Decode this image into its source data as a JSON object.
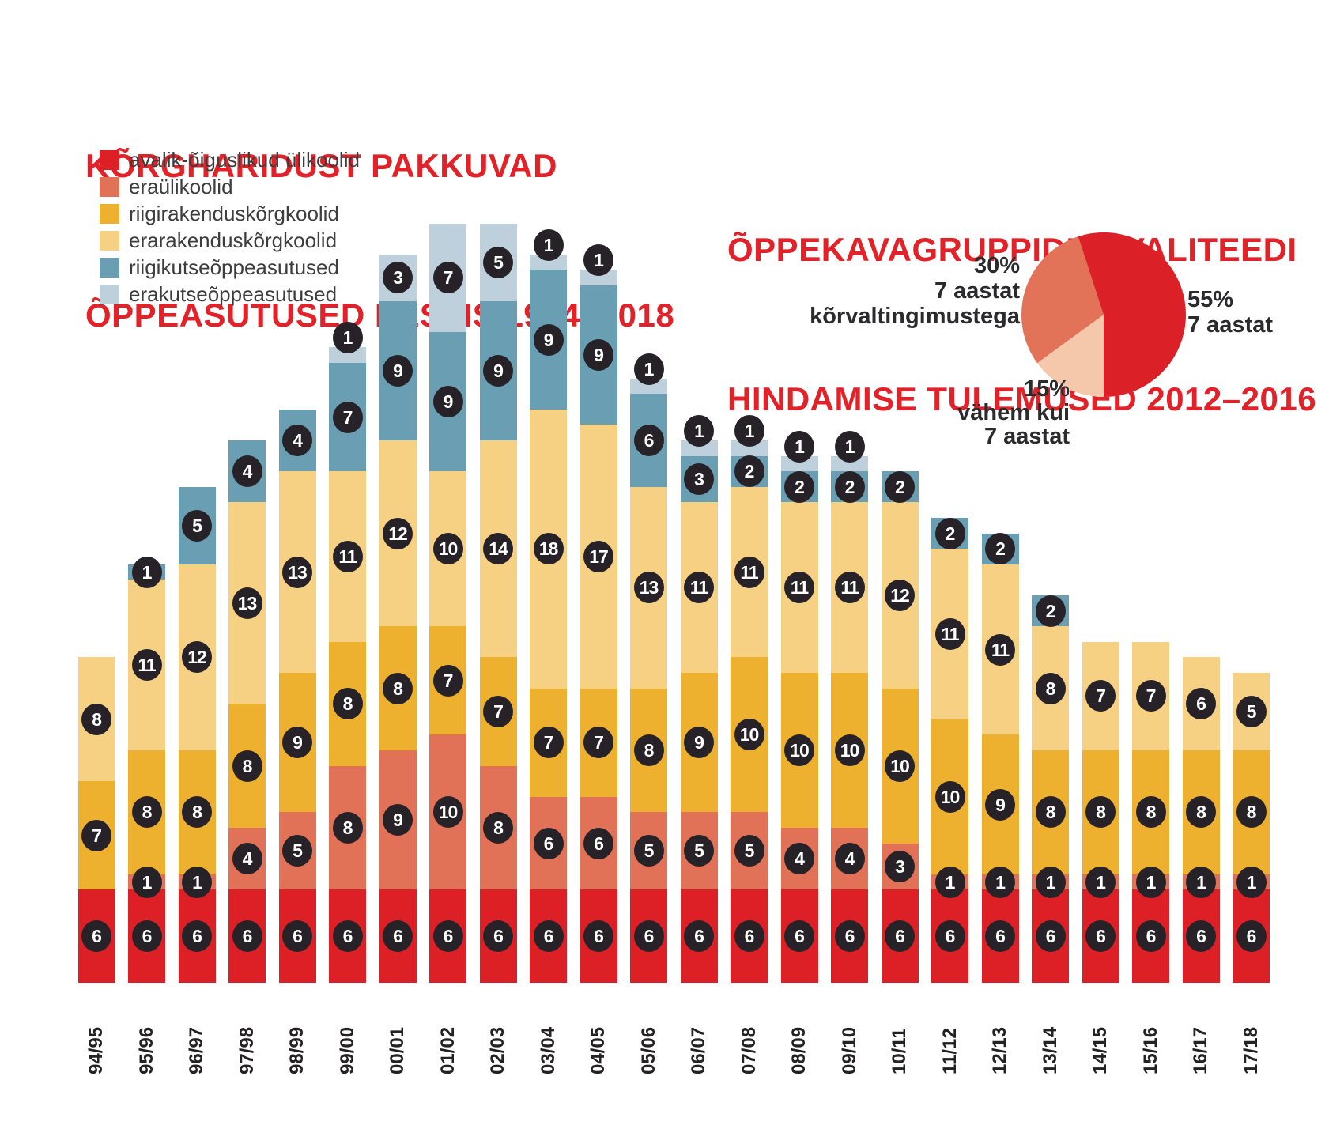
{
  "colors": {
    "title_red": "#e32128",
    "badge_bg": "#262228",
    "badge_text": "#ffffff",
    "axis_text": "#242122",
    "legend_text": "#3d3d3d"
  },
  "left_chart": {
    "title_line1": "KÕRGHARIDUST PAKKUVAD",
    "title_line2": "ÕPPEASUTUSED EESTIS 1994–2018",
    "legend": [
      {
        "label": "avalik-õiguslikud ülikoolid",
        "color": "#dc2026"
      },
      {
        "label": "eraülikoolid",
        "color": "#e17257"
      },
      {
        "label": "riigirakenduskõrgkoolid",
        "color": "#edb02f"
      },
      {
        "label": "erarakenduskõrgkoolid",
        "color": "#f6d083"
      },
      {
        "label": "riigikutseõppeasutused",
        "color": "#6a9eb2"
      },
      {
        "label": "erakutseõppeasutused",
        "color": "#bdd0db"
      }
    ]
  },
  "right_chart": {
    "title_line1": "ÕPPEKAVAGRUPPIDE KVALITEEDI",
    "title_line2": "HINDAMISE TULEMUSED 2012–2016",
    "labels": {
      "left": {
        "lines": [
          "30%",
          "7 aastat",
          "kõrvaltingimustega"
        ]
      },
      "right": {
        "lines": [
          "55%",
          "7 aastat"
        ]
      },
      "bottom": {
        "lines": [
          "15%",
          "vähem kui",
          "7 aastat"
        ]
      }
    }
  },
  "chart_data": [
    {
      "type": "bar",
      "stacked": true,
      "title": "KÕRGHARIDUST PAKKUVAD ÕPPEASUTUSED EESTIS 1994–2018",
      "categories": [
        "94/95",
        "95/96",
        "96/97",
        "97/98",
        "98/99",
        "99/00",
        "00/01",
        "01/02",
        "02/03",
        "03/04",
        "04/05",
        "05/06",
        "06/07",
        "07/08",
        "08/09",
        "09/10",
        "10/11",
        "11/12",
        "12/13",
        "13/14",
        "14/15",
        "15/16",
        "16/17",
        "17/18"
      ],
      "series": [
        {
          "name": "avalik-õiguslikud ülikoolid",
          "color": "#dc2026",
          "values": [
            6,
            6,
            6,
            6,
            6,
            6,
            6,
            6,
            6,
            6,
            6,
            6,
            6,
            6,
            6,
            6,
            6,
            6,
            6,
            6,
            6,
            6,
            6,
            6
          ]
        },
        {
          "name": "eraülikoolid",
          "color": "#e17257",
          "values": [
            0,
            1,
            1,
            4,
            5,
            8,
            9,
            10,
            8,
            6,
            6,
            5,
            5,
            5,
            4,
            4,
            3,
            1,
            1,
            1,
            1,
            1,
            1,
            1
          ]
        },
        {
          "name": "riigirakenduskõrgkoolid",
          "color": "#edb02f",
          "values": [
            7,
            8,
            8,
            8,
            9,
            8,
            8,
            7,
            7,
            7,
            7,
            8,
            9,
            10,
            10,
            10,
            10,
            10,
            9,
            8,
            8,
            8,
            8,
            8
          ]
        },
        {
          "name": "erarakenduskõrgkoolid",
          "color": "#f6d083",
          "values": [
            8,
            11,
            12,
            13,
            13,
            11,
            12,
            10,
            14,
            18,
            17,
            13,
            11,
            11,
            11,
            11,
            12,
            11,
            11,
            8,
            7,
            7,
            6,
            5
          ]
        },
        {
          "name": "riigikutseõppeasutused",
          "color": "#6a9eb2",
          "values": [
            0,
            1,
            5,
            4,
            4,
            7,
            9,
            9,
            9,
            9,
            9,
            6,
            3,
            2,
            2,
            2,
            2,
            2,
            2,
            2,
            0,
            0,
            0,
            0
          ]
        },
        {
          "name": "erakutseõppeasutused",
          "color": "#bdd0db",
          "values": [
            0,
            0,
            0,
            0,
            0,
            1,
            3,
            7,
            5,
            1,
            1,
            1,
            1,
            1,
            1,
            1,
            0,
            0,
            0,
            0,
            0,
            0,
            0,
            0
          ]
        }
      ],
      "value_labels": "each segment value shown in a black circle badge",
      "xlabel": "",
      "ylabel": "",
      "ylim": [
        0,
        49
      ],
      "grid": false,
      "legend_position": "top-left"
    },
    {
      "type": "pie",
      "title": "ÕPPEKAVAGRUPPIDE KVALITEEDI HINDAMISE TULEMUSED 2012–2016",
      "slices": [
        {
          "label": "7 aastat",
          "pct": 55,
          "color": "#dc2027"
        },
        {
          "label": "vähem kui 7 aastat",
          "pct": 15,
          "color": "#f5c8ac"
        },
        {
          "label": "7 aastat kõrvaltingimustega",
          "pct": 30,
          "color": "#e27258"
        }
      ],
      "start_angle_deg": -18,
      "direction": "clockwise"
    }
  ]
}
